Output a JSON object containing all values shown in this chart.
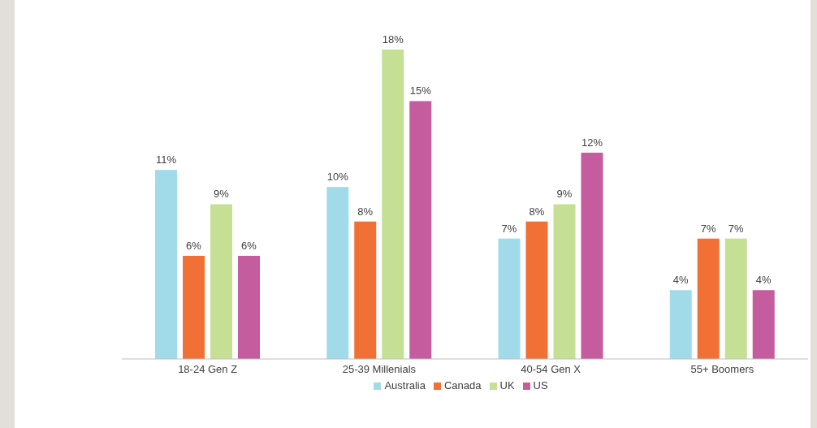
{
  "chart_data": {
    "type": "bar",
    "categories": [
      "18-24 Gen Z",
      "25-39 Millenials",
      "40-54 Gen X",
      "55+ Boomers"
    ],
    "series": [
      {
        "name": "Australia",
        "color": "#a1dbea",
        "values": [
          11,
          10,
          7,
          4
        ],
        "value_labels": [
          "11%",
          "10%",
          "7%",
          "4%"
        ]
      },
      {
        "name": "Canada",
        "color": "#f07035",
        "values": [
          6,
          8,
          8,
          7
        ],
        "value_labels": [
          "6%",
          "8%",
          "8%",
          "7%"
        ]
      },
      {
        "name": "UK",
        "color": "#c5df94",
        "values": [
          9,
          18,
          9,
          7
        ],
        "value_labels": [
          "9%",
          "18%",
          "9%",
          "7%"
        ]
      },
      {
        "name": "US",
        "color": "#c45c9d",
        "values": [
          6,
          15,
          12,
          4
        ],
        "value_labels": [
          "6%",
          "15%",
          "12%",
          "4%"
        ]
      }
    ],
    "legend": "bottom",
    "grid": false
  }
}
